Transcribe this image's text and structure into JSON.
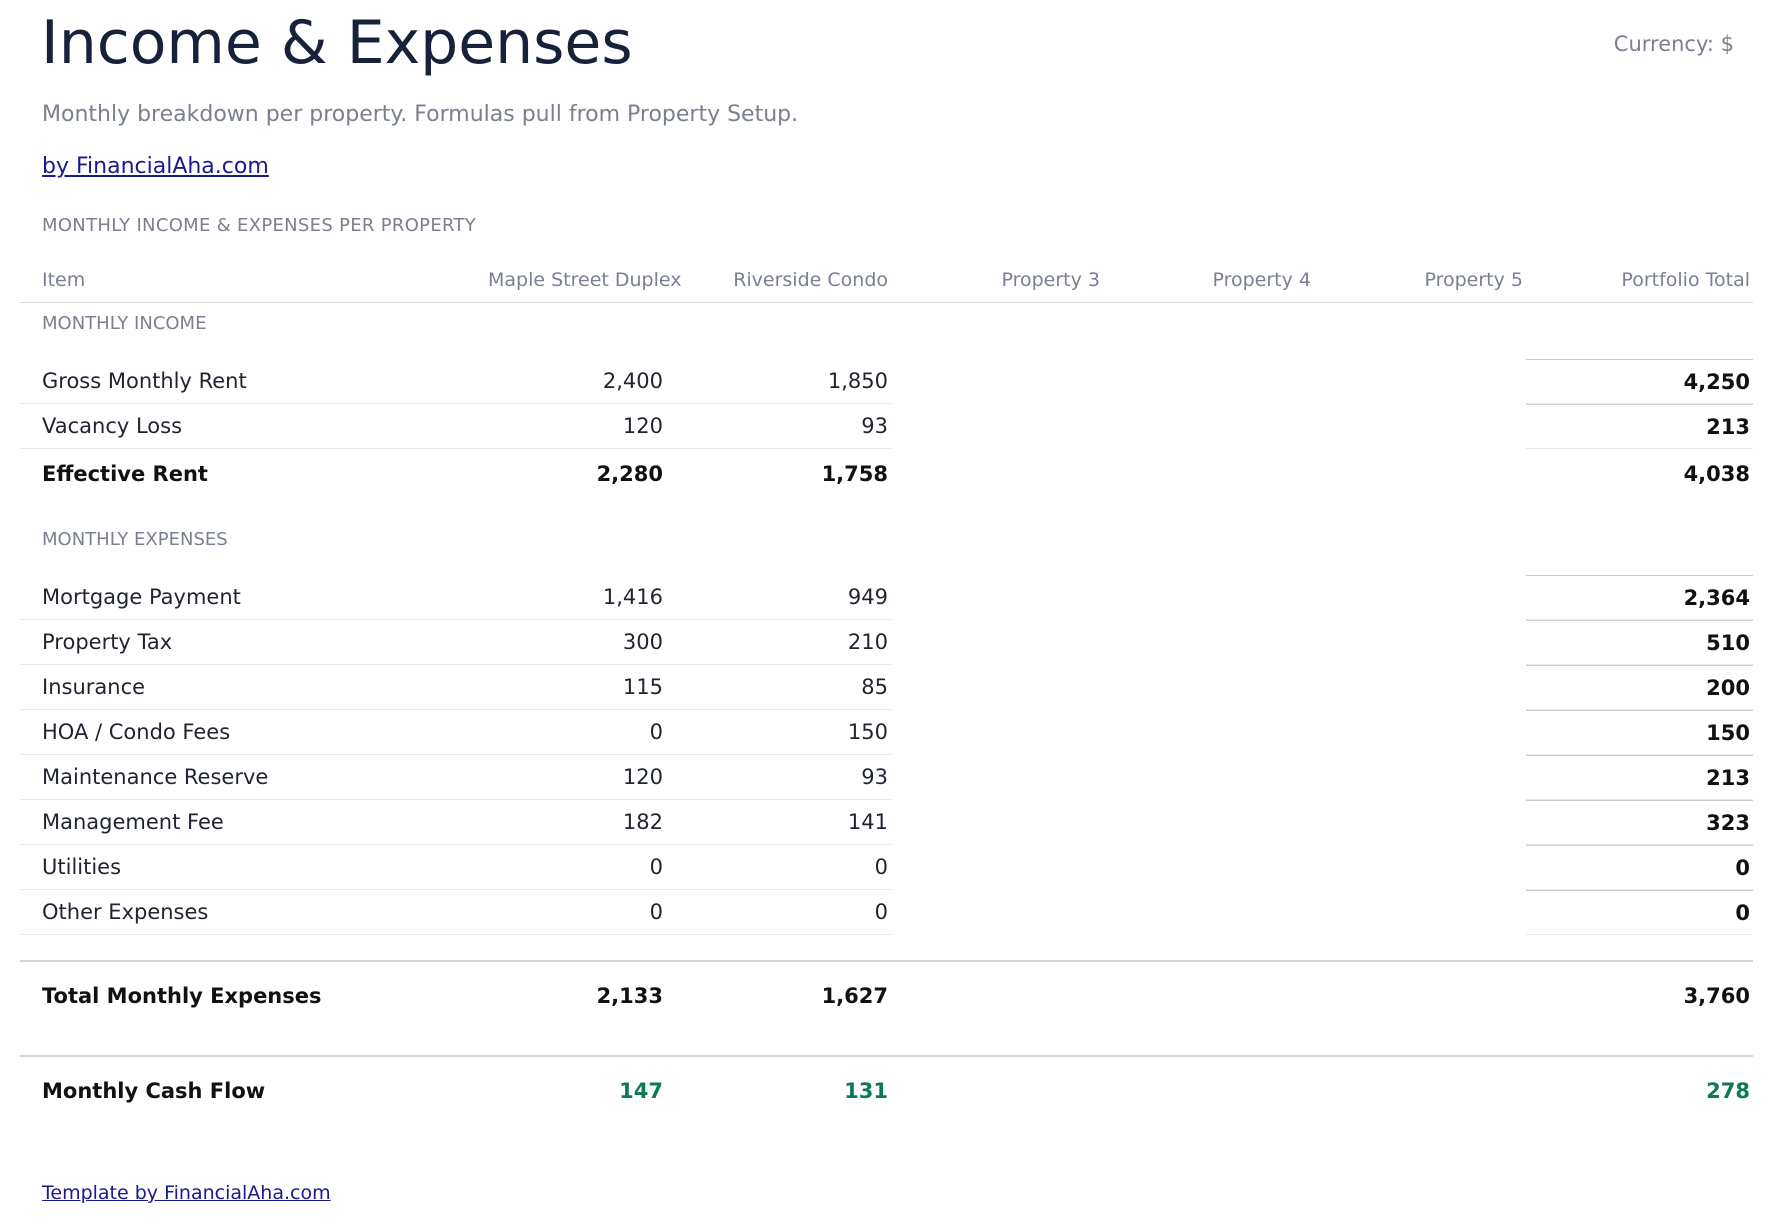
{
  "header": {
    "title": "Income & Expenses",
    "currency": "Currency: $",
    "subtitle": "Monthly breakdown per property. Formulas pull from Property Setup.",
    "link": "by FinancialAha.com"
  },
  "section_label": "MONTHLY INCOME & EXPENSES PER PROPERTY",
  "table": {
    "columns": [
      "Item",
      "Maple Street Duplex",
      "Riverside Condo",
      "Property 3",
      "Property 4",
      "Property 5",
      "Portfolio Total"
    ],
    "sections": [
      {
        "label": "MONTHLY INCOME",
        "rows": [
          [
            "Gross Monthly Rent",
            "2,400",
            "1,850",
            null,
            null,
            null,
            "4,250"
          ],
          [
            "Vacancy Loss",
            "120",
            "93",
            null,
            null,
            null,
            "213"
          ]
        ],
        "total": [
          "Effective Rent",
          "2,280",
          "1,758",
          null,
          null,
          null,
          "4,038"
        ]
      },
      {
        "label": "MONTHLY EXPENSES",
        "rows": [
          [
            "Mortgage Payment",
            "1,416",
            "949",
            null,
            null,
            null,
            "2,364"
          ],
          [
            "Property Tax",
            "300",
            "210",
            null,
            null,
            null,
            "510"
          ],
          [
            "Insurance",
            "115",
            "85",
            null,
            null,
            null,
            "200"
          ],
          [
            "HOA / Condo Fees",
            "0",
            "150",
            null,
            null,
            null,
            "150"
          ],
          [
            "Maintenance Reserve",
            "120",
            "93",
            null,
            null,
            null,
            "213"
          ],
          [
            "Management Fee",
            "182",
            "141",
            null,
            null,
            null,
            "323"
          ],
          [
            "Utilities",
            "0",
            "0",
            null,
            null,
            null,
            "0"
          ],
          [
            "Other Expenses",
            "0",
            "0",
            null,
            null,
            null,
            "0"
          ]
        ],
        "total": [
          "Total Monthly Expenses",
          "2,133",
          "1,627",
          null,
          null,
          null,
          "3,760"
        ]
      }
    ],
    "cash_flow": [
      "Monthly Cash Flow",
      "147",
      "131",
      null,
      null,
      null,
      "278"
    ]
  },
  "footer": {
    "link": "Template by FinancialAha.com"
  }
}
